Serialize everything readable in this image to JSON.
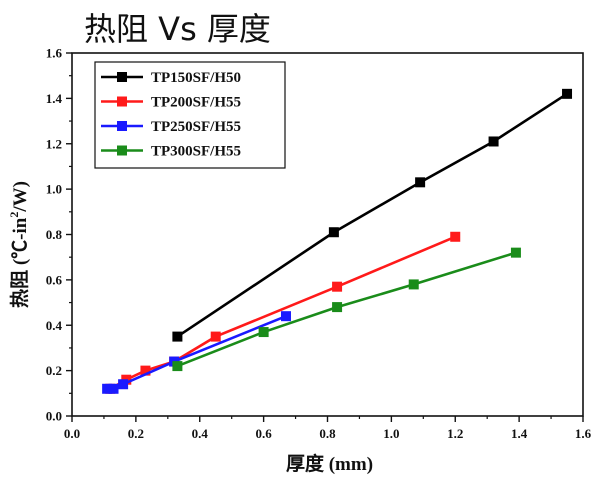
{
  "chart_data": {
    "type": "line",
    "title": "热阻 Vs 厚度",
    "xlabel": "厚度 (mm)",
    "ylabel_main": "热阻 (℃-in",
    "ylabel_sup": "2",
    "ylabel_tail": "/W)",
    "xlim": [
      0.0,
      1.6
    ],
    "ylim": [
      0.0,
      1.6
    ],
    "xticks": [
      "0.0",
      "0.2",
      "0.4",
      "0.6",
      "0.8",
      "1.0",
      "1.2",
      "1.4",
      "1.6"
    ],
    "yticks": [
      "0.0",
      "0.2",
      "0.4",
      "0.6",
      "0.8",
      "1.0",
      "1.2",
      "1.4",
      "1.6"
    ],
    "legend_position": "top-left",
    "series": [
      {
        "name": "TP150SF/H50",
        "color": "#000000",
        "x": [
          0.33,
          0.82,
          1.09,
          1.32,
          1.55
        ],
        "y": [
          0.35,
          0.81,
          1.03,
          1.21,
          1.42
        ]
      },
      {
        "name": "TP200SF/H55",
        "color": "#ff1a1a",
        "x": [
          0.12,
          0.17,
          0.23,
          0.32,
          0.45,
          0.83,
          1.2
        ],
        "y": [
          0.12,
          0.16,
          0.2,
          0.24,
          0.35,
          0.57,
          0.79
        ]
      },
      {
        "name": "TP250SF/H55",
        "color": "#1a1aff",
        "x": [
          0.11,
          0.13,
          0.16,
          0.32,
          0.67
        ],
        "y": [
          0.12,
          0.12,
          0.14,
          0.24,
          0.44
        ]
      },
      {
        "name": "TP300SF/H55",
        "color": "#1a8c1a",
        "x": [
          0.33,
          0.6,
          0.83,
          1.07,
          1.39
        ],
        "y": [
          0.22,
          0.37,
          0.48,
          0.58,
          0.72
        ]
      }
    ]
  }
}
